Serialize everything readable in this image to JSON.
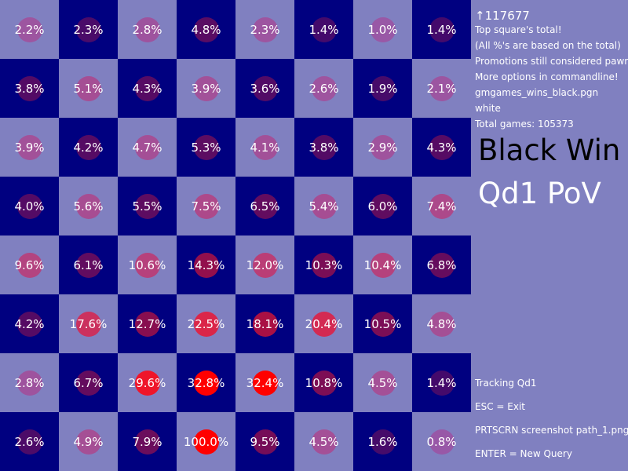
{
  "board": {
    "light_color": "#8080c0",
    "dark_color": "#000080",
    "rows": [
      [
        "2.2%",
        "2.3%",
        "2.8%",
        "4.8%",
        "2.3%",
        "1.4%",
        "1.0%",
        "1.4%"
      ],
      [
        "3.8%",
        "5.1%",
        "4.3%",
        "3.9%",
        "3.6%",
        "2.6%",
        "1.9%",
        "2.1%"
      ],
      [
        "3.9%",
        "4.2%",
        "4.7%",
        "5.3%",
        "4.1%",
        "3.8%",
        "2.9%",
        "4.3%"
      ],
      [
        "4.0%",
        "5.6%",
        "5.5%",
        "7.5%",
        "6.5%",
        "5.4%",
        "6.0%",
        "7.4%"
      ],
      [
        "9.6%",
        "6.1%",
        "10.6%",
        "14.3%",
        "12.0%",
        "10.3%",
        "10.4%",
        "6.8%"
      ],
      [
        "4.2%",
        "17.6%",
        "12.7%",
        "22.5%",
        "18.1%",
        "20.4%",
        "10.5%",
        "4.8%"
      ],
      [
        "2.8%",
        "6.7%",
        "29.6%",
        "32.8%",
        "32.4%",
        "10.8%",
        "4.5%",
        "1.4%"
      ],
      [
        "2.6%",
        "4.9%",
        "7.9%",
        "100.0%",
        "9.5%",
        "4.5%",
        "1.6%",
        "0.8%"
      ]
    ],
    "heat_values": [
      [
        2.2,
        2.3,
        2.8,
        4.8,
        2.3,
        1.4,
        1.0,
        1.4
      ],
      [
        3.8,
        5.1,
        4.3,
        3.9,
        3.6,
        2.6,
        1.9,
        2.1
      ],
      [
        3.9,
        4.2,
        4.7,
        5.3,
        4.1,
        3.8,
        2.9,
        4.3
      ],
      [
        4.0,
        5.6,
        5.5,
        7.5,
        6.5,
        5.4,
        6.0,
        7.4
      ],
      [
        9.6,
        6.1,
        10.6,
        14.3,
        12.0,
        10.3,
        10.4,
        6.8
      ],
      [
        4.2,
        17.6,
        12.7,
        22.5,
        18.1,
        20.4,
        10.5,
        4.8
      ],
      [
        2.8,
        6.7,
        29.6,
        32.8,
        32.4,
        10.8,
        4.5,
        1.4
      ],
      [
        2.6,
        4.9,
        7.9,
        100.0,
        9.5,
        4.5,
        1.6,
        0.8
      ]
    ]
  },
  "panel": {
    "move_count": "↑117677",
    "info": [
      "Top square's total!",
      "(All %'s are based on the total)",
      "Promotions still considered pawns",
      "More options in commandline!",
      "gmgames_wins_black.pgn",
      "white",
      "Total games: 105373"
    ],
    "title_line1": "Black Win",
    "title_line2": "Qd1 PoV",
    "controls": [
      "Tracking Qd1",
      "ESC = Exit",
      "PRTSCRN screenshot path_1.png",
      "ENTER = New Query"
    ]
  }
}
